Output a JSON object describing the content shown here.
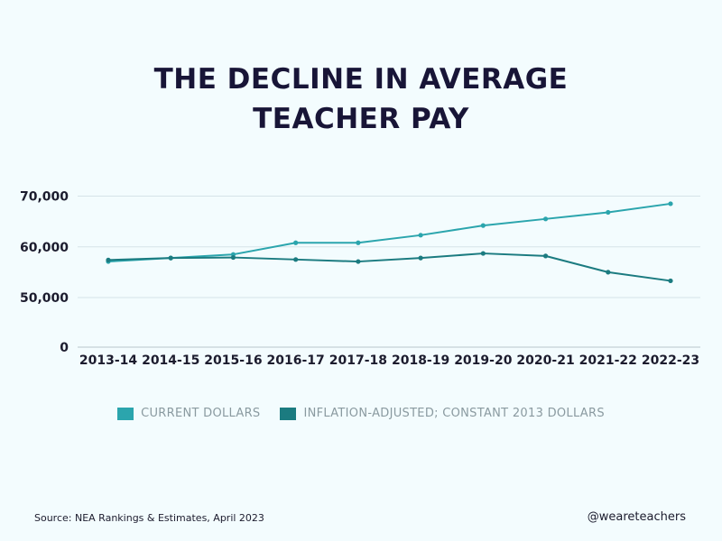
{
  "title_line1": "THE DECLINE IN AVERAGE",
  "title_line2": "TEACHER PAY",
  "source": "Source: NEA Rankings & Estimates, April 2023",
  "handle": "@weareteachers",
  "chart_data": {
    "type": "line",
    "categories": [
      "2013-14",
      "2014-15",
      "2015-16",
      "2016-17",
      "2017-18",
      "2018-19",
      "2019-20",
      "2020-21",
      "2021-22",
      "2022-23"
    ],
    "series": [
      {
        "name": "CURRENT DOLLARS",
        "color": "#2ba5ad",
        "values": [
          57100,
          57800,
          58500,
          60800,
          60800,
          62300,
          64200,
          65500,
          66800,
          68500
        ]
      },
      {
        "name": "INFLATION-ADJUSTED; CONSTANT 2013 DOLLARS",
        "color": "#1b7b80",
        "values": [
          57400,
          57800,
          57900,
          57500,
          57100,
          57800,
          58700,
          58200,
          55000,
          53300
        ]
      }
    ],
    "yticks": [
      0,
      50000,
      60000,
      70000
    ],
    "ytick_labels": [
      "0",
      "50,000",
      "60,000",
      "70,000"
    ],
    "grid": true,
    "legend_position": "bottom"
  }
}
